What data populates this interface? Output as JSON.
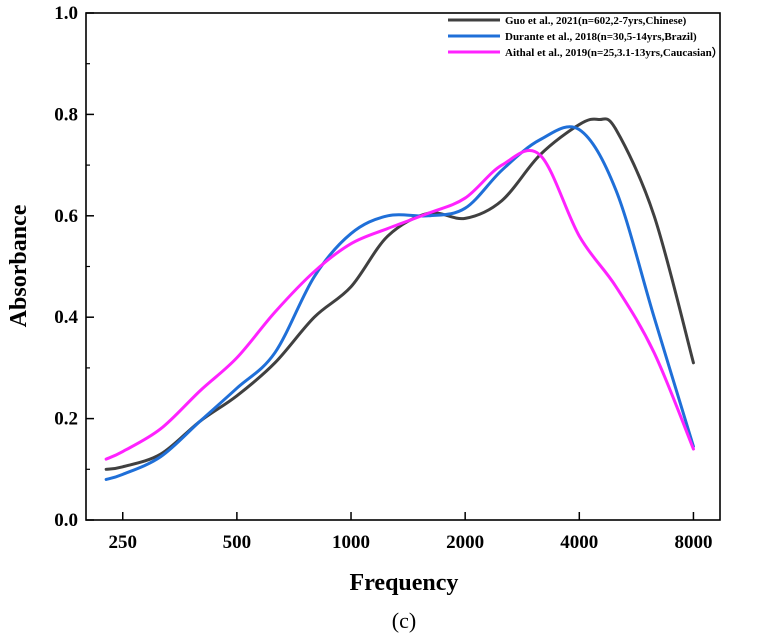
{
  "caption": "(c)",
  "chart_data": {
    "type": "line",
    "xlabel": "Frequency",
    "ylabel": "Absorbance",
    "x_scale": "log",
    "xticks": [
      250,
      500,
      1000,
      2000,
      4000,
      8000
    ],
    "xtick_labels": [
      "250",
      "500",
      "1000",
      "2000",
      "4000",
      "8000"
    ],
    "xlim": [
      200,
      9400
    ],
    "ylim": [
      0.0,
      1.0
    ],
    "yticks": [
      0.0,
      0.2,
      0.4,
      0.6,
      0.8,
      1.0
    ],
    "ytick_labels": [
      "0.0",
      "0.2",
      "0.4",
      "0.6",
      "0.8",
      "1.0"
    ],
    "grid": false,
    "legend_position": "top-right",
    "series": [
      {
        "name": "Guo et al., 2021(n=602,2-7yrs,Chinese)",
        "color": "#404040",
        "x": [
          226,
          250,
          315,
          400,
          500,
          630,
          800,
          1000,
          1250,
          1600,
          2000,
          2500,
          3150,
          4000,
          4500,
          5000,
          6300,
          8000
        ],
        "y": [
          0.1,
          0.105,
          0.13,
          0.195,
          0.245,
          0.31,
          0.4,
          0.46,
          0.56,
          0.605,
          0.595,
          0.63,
          0.72,
          0.78,
          0.79,
          0.77,
          0.6,
          0.31
        ]
      },
      {
        "name": "Durante et al., 2018(n=30,5-14yrs,Brazil)",
        "color": "#1f6fd8",
        "x": [
          226,
          250,
          315,
          400,
          500,
          630,
          800,
          1000,
          1250,
          1600,
          2000,
          2500,
          3150,
          4000,
          5000,
          6300,
          8000
        ],
        "y": [
          0.08,
          0.09,
          0.125,
          0.195,
          0.26,
          0.33,
          0.48,
          0.565,
          0.6,
          0.6,
          0.615,
          0.69,
          0.75,
          0.77,
          0.65,
          0.4,
          0.145
        ]
      },
      {
        "name": "Aithal et al., 2019(n=25,3.1-13yrs,Caucasian）",
        "color": "#ff22ff",
        "x": [
          226,
          250,
          315,
          400,
          500,
          630,
          800,
          1000,
          1250,
          1600,
          2000,
          2500,
          3150,
          4000,
          5000,
          6300,
          8000
        ],
        "y": [
          0.12,
          0.135,
          0.18,
          0.255,
          0.32,
          0.41,
          0.49,
          0.545,
          0.575,
          0.605,
          0.635,
          0.7,
          0.72,
          0.56,
          0.46,
          0.33,
          0.14
        ]
      }
    ]
  }
}
